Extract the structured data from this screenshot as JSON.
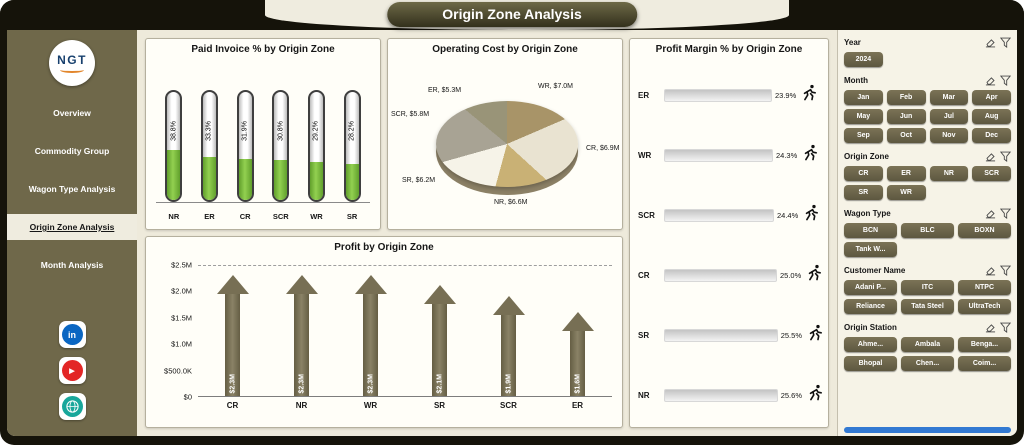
{
  "app": {
    "title": "Origin Zone Analysis"
  },
  "sidebar": {
    "logo_text": "NGT",
    "items": [
      "Overview",
      "Commodity Group",
      "Wagon Type Analysis",
      "Origin Zone Analysis",
      "Month Analysis"
    ],
    "active_item": "Origin Zone Analysis"
  },
  "icons": {
    "linkedin_glyph": "in",
    "youtube_glyph": "▶"
  },
  "chart_data": [
    {
      "id": "paid_invoice",
      "type": "bar",
      "title": "Paid Invoice % by Origin Zone",
      "categories": [
        "NR",
        "ER",
        "CR",
        "SCR",
        "WR",
        "SR"
      ],
      "values": [
        38.8,
        33.3,
        31.9,
        30.8,
        29.2,
        28.2
      ],
      "value_labels": [
        "38.8%",
        "33.3%",
        "31.9%",
        "30.8%",
        "29.2%",
        "28.2%"
      ],
      "bar_fill_color": "#92d050"
    },
    {
      "id": "operating_cost",
      "type": "pie",
      "title": "Operating Cost by Origin Zone",
      "slices": [
        {
          "label": "WR, $7.0M",
          "zone": "WR",
          "value": 7.0,
          "color": "#a89468"
        },
        {
          "label": "CR, $6.9M",
          "zone": "CR",
          "value": 6.9,
          "color": "#e9e3d1"
        },
        {
          "label": "NR, $6.6M",
          "zone": "NR",
          "value": 6.6,
          "color": "#c9b175"
        },
        {
          "label": "SR, $6.2M",
          "zone": "SR",
          "value": 6.2,
          "color": "#f6f3e8"
        },
        {
          "label": "SCR, $5.8M",
          "zone": "SCR",
          "value": 5.8,
          "color": "#a8a394"
        },
        {
          "label": "ER, $5.3M",
          "zone": "ER",
          "value": 5.3,
          "color": "#999478"
        }
      ]
    },
    {
      "id": "profit_margin",
      "type": "bar",
      "orientation": "horizontal",
      "title": "Profit Margin % by Origin Zone",
      "categories": [
        "ER",
        "WR",
        "SCR",
        "CR",
        "SR",
        "NR"
      ],
      "values": [
        23.9,
        24.3,
        24.4,
        25.0,
        25.5,
        25.6
      ],
      "value_labels": [
        "23.9%",
        "24.3%",
        "24.4%",
        "25.0%",
        "25.5%",
        "25.6%"
      ]
    },
    {
      "id": "profit",
      "type": "bar",
      "title": "Profit by Origin Zone",
      "categories": [
        "CR",
        "NR",
        "WR",
        "SR",
        "SCR",
        "ER"
      ],
      "values": [
        2.3,
        2.3,
        2.3,
        2.1,
        1.9,
        1.6
      ],
      "value_labels": [
        "$2.3M",
        "$2.3M",
        "$2.3M",
        "$2.1M",
        "$1.9M",
        "$1.6M"
      ],
      "y_ticks": [
        "$2.5M",
        "$2.0M",
        "$1.5M",
        "$1.0M",
        "$500.0K",
        "$0"
      ],
      "ylim": [
        0,
        2.5
      ]
    }
  ],
  "filters": {
    "sections": [
      {
        "label": "Year",
        "options": [
          "2024"
        ]
      },
      {
        "label": "Month",
        "options": [
          "Jan",
          "Feb",
          "Mar",
          "Apr",
          "May",
          "Jun",
          "Jul",
          "Aug",
          "Sep",
          "Oct",
          "Nov",
          "Dec"
        ]
      },
      {
        "label": "Origin Zone",
        "options": [
          "CR",
          "ER",
          "NR",
          "SCR",
          "SR",
          "WR"
        ]
      },
      {
        "label": "Wagon Type",
        "options": [
          "BCN",
          "BLC",
          "BOXN",
          "Tank W..."
        ]
      },
      {
        "label": "Customer Name",
        "options": [
          "Adani P...",
          "ITC",
          "NTPC",
          "Reliance",
          "Tata Steel",
          "UltraTech"
        ]
      },
      {
        "label": "Origin Station",
        "options": [
          "Ahme...",
          "Ambala",
          "Benga...",
          "Bhopal",
          "Chen...",
          "Coim..."
        ]
      }
    ]
  },
  "colors": {
    "sidebar": "#6f684a",
    "button": "#6b6347",
    "bar_green": "#92d050",
    "arrow": "#7c745a",
    "scrollbar_blue": "#3279d2"
  }
}
